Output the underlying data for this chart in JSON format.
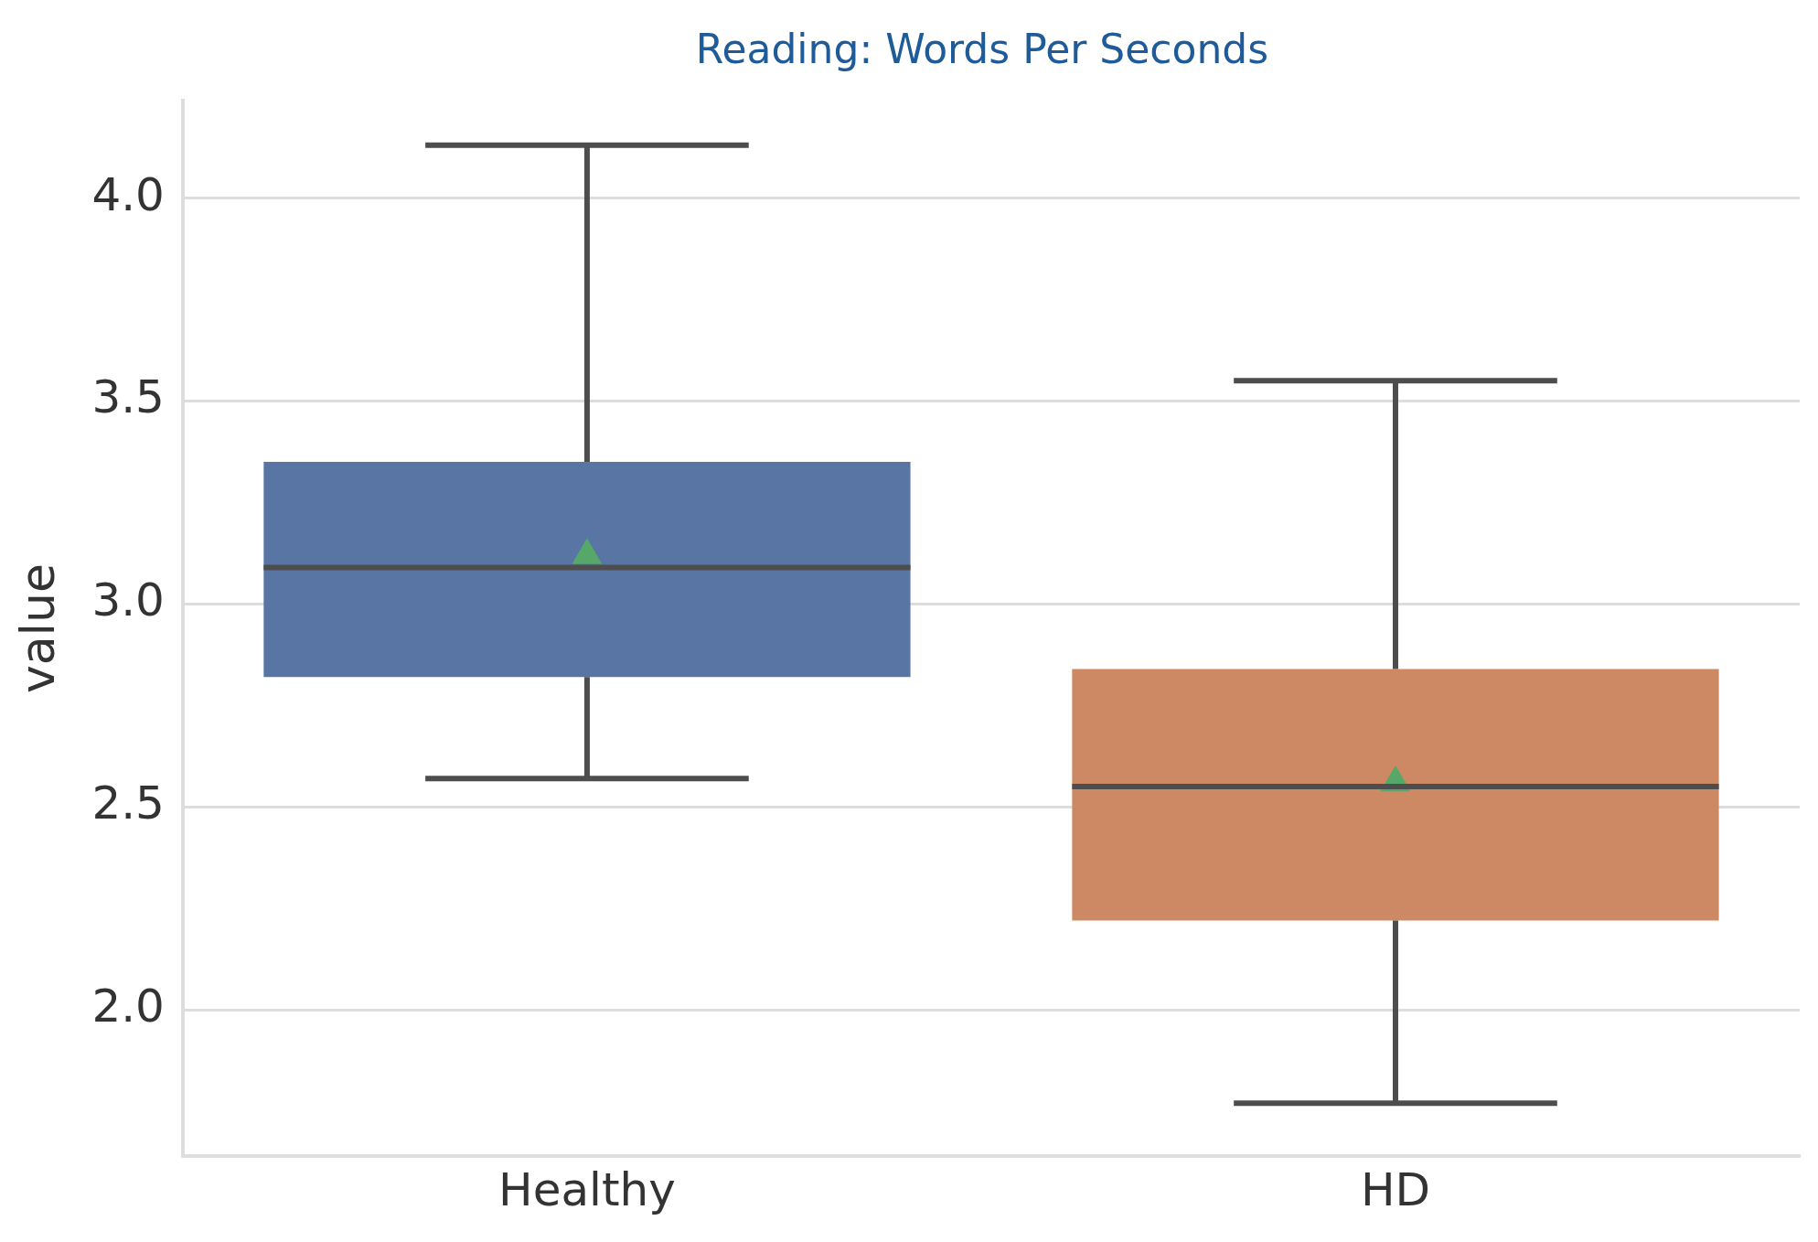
{
  "chart_data": {
    "type": "box",
    "title": "Reading: Words Per Seconds",
    "ylabel": "value",
    "categories": [
      "Healthy",
      "HD"
    ],
    "boxes": [
      {
        "low": 2.57,
        "q1": 2.82,
        "median": 3.09,
        "q3": 3.35,
        "high": 4.13,
        "mean": 3.12
      },
      {
        "low": 1.77,
        "q1": 2.22,
        "median": 2.55,
        "q3": 2.84,
        "high": 3.55,
        "mean": 2.56
      }
    ],
    "colors": [
      "#5875a4",
      "#cc8963"
    ],
    "ylim": [
      1.64,
      4.24
    ],
    "yticks": [
      {
        "value": 2,
        "label": "2.0"
      },
      {
        "value": 2.5,
        "label": "2.5"
      },
      {
        "value": 3,
        "label": "3.0"
      },
      {
        "value": 3.5,
        "label": "3.5"
      },
      {
        "value": 4,
        "label": "4.0"
      }
    ],
    "grid": "y"
  }
}
